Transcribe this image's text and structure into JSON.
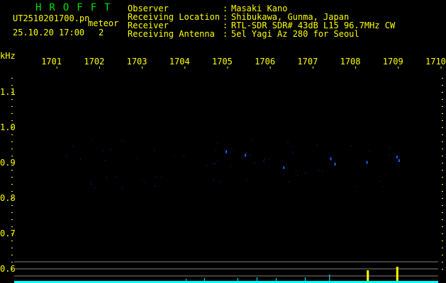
{
  "header": {
    "title": "HROFFT",
    "filename": "UT2510201700.pn",
    "mode": "meteor",
    "datetime": "25.10.20 17:00",
    "count": "2"
  },
  "info": [
    {
      "label": "Observer",
      "value": "Masaki Kano"
    },
    {
      "label": "Receiving Location",
      "value": "Shibukawa, Gunma, Japan"
    },
    {
      "label": "Receiver",
      "value": "RTL-SDR SDR# 43dB L15 96.7MHz CW"
    },
    {
      "label": "Receiving Antenna",
      "value": "5el Yagi Az 280 for Seoul"
    }
  ],
  "chart_data": {
    "type": "heatmap",
    "xunit": "kHz",
    "xlim": [
      1700,
      1710
    ],
    "xticks": [
      "1701",
      "1702",
      "1703",
      "1704",
      "1705",
      "1706",
      "1707",
      "1708",
      "1709",
      "1710"
    ],
    "yticks": [
      "1.1",
      "1.0",
      "0.9",
      "0.8",
      "0.7",
      "0.6"
    ],
    "echoes": [
      {
        "x": 1704.95,
        "y": 0.935
      },
      {
        "x": 1705.4,
        "y": 0.925
      },
      {
        "x": 1706.3,
        "y": 0.89
      },
      {
        "x": 1707.4,
        "y": 0.915
      },
      {
        "x": 1707.5,
        "y": 0.9
      },
      {
        "x": 1708.25,
        "y": 0.905
      },
      {
        "x": 1708.95,
        "y": 0.92
      },
      {
        "x": 1709.0,
        "y": 0.91
      }
    ],
    "spikes": [
      {
        "x": 1704.02,
        "level": 0.3
      },
      {
        "x": 1704.45,
        "level": 0.4
      },
      {
        "x": 1705.23,
        "level": 0.4
      },
      {
        "x": 1705.68,
        "level": 0.5
      },
      {
        "x": 1706.13,
        "level": 0.4
      },
      {
        "x": 1706.81,
        "level": 0.5
      },
      {
        "x": 1707.38,
        "level": 0.9
      },
      {
        "x": 1708.26,
        "level": 1.5,
        "color": "#ffff00"
      },
      {
        "x": 1708.95,
        "level": 2,
        "color": "#ffff00"
      }
    ],
    "colors": {
      "text": "#ffff00",
      "title": "#00e000",
      "trace": "#00ffff",
      "echo": "#2060ff",
      "grid": "#808080"
    }
  }
}
